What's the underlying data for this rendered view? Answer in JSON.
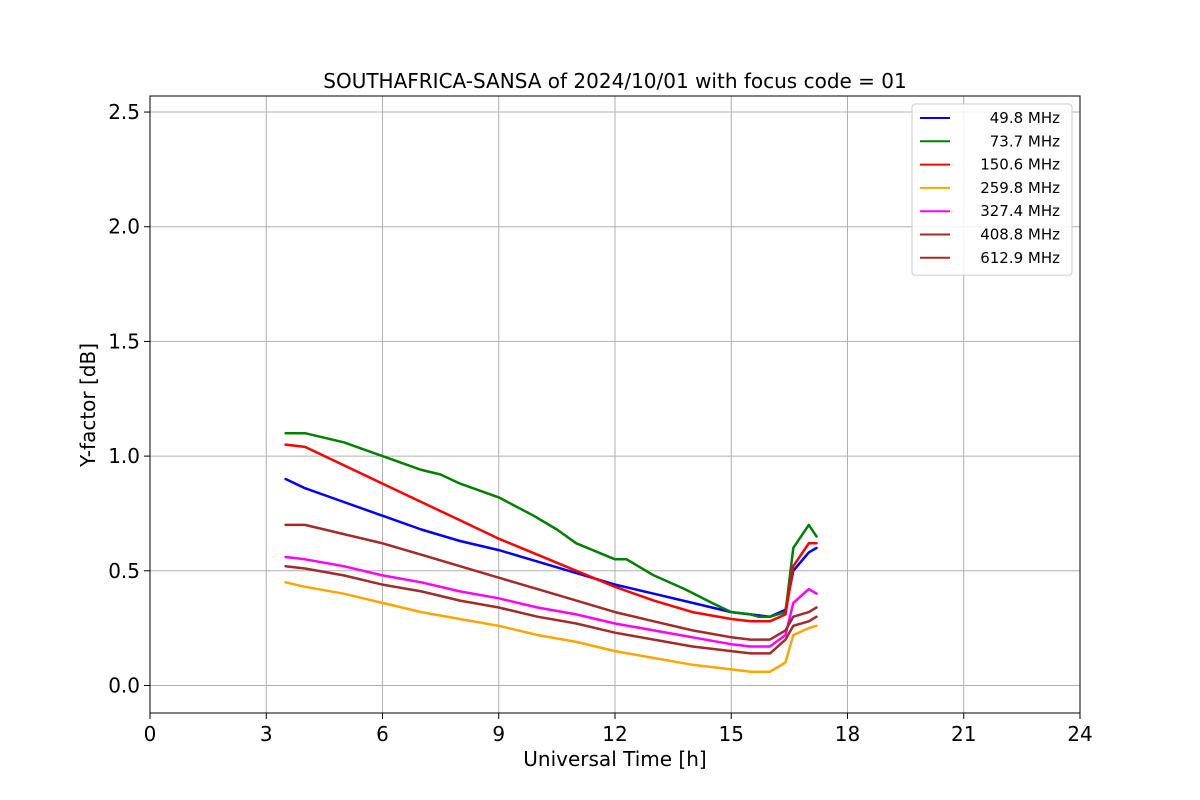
{
  "chart_data": {
    "type": "line",
    "title": "SOUTHAFRICA-SANSA of 2024/10/01 with focus code = 01",
    "xlabel": "Universal Time [h]",
    "ylabel": "Y-factor [dB]",
    "xlim": [
      0,
      24
    ],
    "ylim": [
      -0.12,
      2.57
    ],
    "xticks": [
      0,
      3,
      6,
      9,
      12,
      15,
      18,
      21,
      24
    ],
    "yticks": [
      0.0,
      0.5,
      1.0,
      1.5,
      2.0,
      2.5
    ],
    "xtick_labels": [
      "0",
      "3",
      "6",
      "9",
      "12",
      "15",
      "18",
      "21",
      "24"
    ],
    "ytick_labels": [
      "0.0",
      "0.5",
      "1.0",
      "1.5",
      "2.0",
      "2.5"
    ],
    "grid": true,
    "legend_position": "top-right",
    "series": [
      {
        "name": " 49.8 MHz",
        "color": "#0000ff",
        "x": [
          3.5,
          4.0,
          5.0,
          6.0,
          7.0,
          8.0,
          9.0,
          10.0,
          11.0,
          12.0,
          13.0,
          14.0,
          15.0,
          15.5,
          16.0,
          16.4,
          16.6,
          17.0,
          17.2
        ],
        "y": [
          0.9,
          0.86,
          0.8,
          0.74,
          0.68,
          0.63,
          0.59,
          0.54,
          0.49,
          0.44,
          0.4,
          0.36,
          0.32,
          0.31,
          0.3,
          0.33,
          0.5,
          0.58,
          0.6
        ]
      },
      {
        "name": " 73.7 MHz",
        "color": "#008000",
        "x": [
          3.5,
          4.0,
          5.0,
          6.0,
          7.0,
          7.5,
          8.0,
          9.0,
          9.9,
          10.5,
          11.0,
          12.0,
          12.3,
          13.0,
          13.8,
          14.5,
          15.0,
          15.5,
          15.7,
          16.0,
          16.4,
          16.6,
          17.0,
          17.2
        ],
        "y": [
          1.1,
          1.1,
          1.06,
          1.0,
          0.94,
          0.92,
          0.88,
          0.82,
          0.74,
          0.68,
          0.62,
          0.55,
          0.55,
          0.48,
          0.42,
          0.36,
          0.32,
          0.31,
          0.3,
          0.3,
          0.32,
          0.6,
          0.7,
          0.65
        ]
      },
      {
        "name": " 150.6 MHz",
        "color": "#ff0000",
        "x": [
          3.5,
          4.0,
          5.0,
          6.0,
          7.0,
          8.0,
          9.0,
          10.0,
          11.0,
          12.0,
          13.0,
          14.0,
          15.0,
          15.5,
          16.0,
          16.4,
          16.6,
          17.0,
          17.2
        ],
        "y": [
          1.05,
          1.04,
          0.96,
          0.88,
          0.8,
          0.72,
          0.64,
          0.57,
          0.5,
          0.43,
          0.37,
          0.32,
          0.29,
          0.28,
          0.28,
          0.31,
          0.52,
          0.62,
          0.62
        ]
      },
      {
        "name": " 259.8 MHz",
        "color": "#ffa500",
        "x": [
          3.5,
          4.0,
          5.0,
          6.0,
          7.0,
          8.0,
          9.0,
          10.0,
          11.0,
          12.0,
          13.0,
          14.0,
          15.0,
          15.5,
          16.0,
          16.4,
          16.6,
          17.0,
          17.2
        ],
        "y": [
          0.45,
          0.43,
          0.4,
          0.36,
          0.32,
          0.29,
          0.26,
          0.22,
          0.19,
          0.15,
          0.12,
          0.09,
          0.07,
          0.06,
          0.06,
          0.1,
          0.22,
          0.25,
          0.26
        ]
      },
      {
        "name": " 327.4 MHz",
        "color": "#ff00ff",
        "x": [
          3.5,
          4.0,
          5.0,
          6.0,
          7.0,
          8.0,
          9.0,
          10.0,
          11.0,
          12.0,
          13.0,
          14.0,
          15.0,
          15.5,
          16.0,
          16.4,
          16.6,
          17.0,
          17.2
        ],
        "y": [
          0.56,
          0.55,
          0.52,
          0.48,
          0.45,
          0.41,
          0.38,
          0.34,
          0.31,
          0.27,
          0.24,
          0.21,
          0.18,
          0.17,
          0.17,
          0.22,
          0.36,
          0.42,
          0.4
        ]
      },
      {
        "name": " 408.8 MHz",
        "color": "#a52a2a",
        "x": [
          3.5,
          4.0,
          5.0,
          6.0,
          7.0,
          8.0,
          9.0,
          10.0,
          11.0,
          12.0,
          13.0,
          14.0,
          15.0,
          15.5,
          16.0,
          16.4,
          16.6,
          17.0,
          17.2
        ],
        "y": [
          0.7,
          0.7,
          0.66,
          0.62,
          0.57,
          0.52,
          0.47,
          0.42,
          0.37,
          0.32,
          0.28,
          0.24,
          0.21,
          0.2,
          0.2,
          0.24,
          0.3,
          0.32,
          0.34
        ]
      },
      {
        "name": " 612.9 MHz",
        "color": "#a52a2a",
        "x": [
          3.5,
          4.0,
          5.0,
          6.0,
          7.0,
          8.0,
          9.0,
          10.0,
          11.0,
          12.0,
          13.0,
          14.0,
          15.0,
          15.5,
          16.0,
          16.4,
          16.6,
          17.0,
          17.2
        ],
        "y": [
          0.52,
          0.51,
          0.48,
          0.44,
          0.41,
          0.37,
          0.34,
          0.3,
          0.27,
          0.23,
          0.2,
          0.17,
          0.15,
          0.14,
          0.14,
          0.2,
          0.26,
          0.28,
          0.3
        ]
      }
    ]
  }
}
